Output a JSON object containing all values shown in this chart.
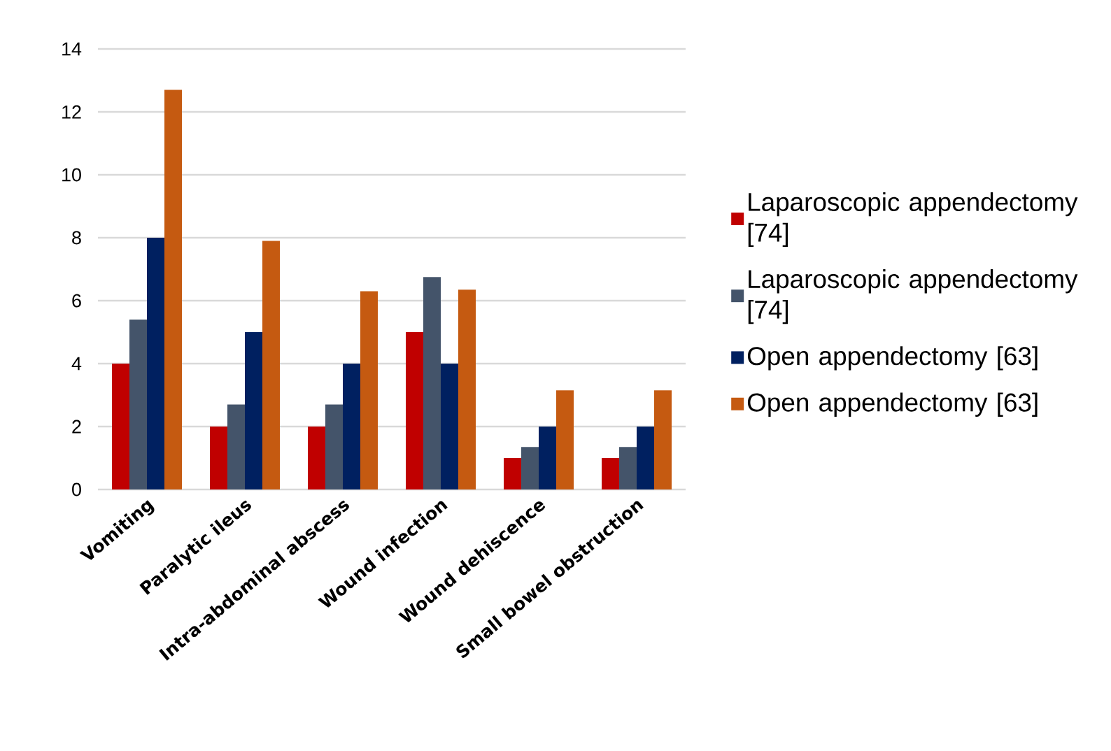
{
  "chart_data": {
    "type": "bar",
    "categories": [
      "Vomiting",
      "Paralytic ileus",
      "Intra-abdominal abscess",
      "Wound infection",
      "Wound dehiscence",
      "Small bowel obstruction"
    ],
    "series": [
      {
        "name": "Laparoscopic appendectomy [74]",
        "color": "#c00000",
        "values": [
          4,
          2,
          2,
          5,
          1,
          1
        ]
      },
      {
        "name": "Laparoscopic appendectomy [74]",
        "color": "#44546a",
        "values": [
          5.4,
          2.7,
          2.7,
          6.75,
          1.35,
          1.35
        ]
      },
      {
        "name": "Open appendectomy [63]",
        "color": "#002060",
        "values": [
          8,
          5,
          4,
          4,
          2,
          2
        ]
      },
      {
        "name": "Open appendectomy [63]",
        "color": "#c55a11",
        "values": [
          12.7,
          7.9,
          6.3,
          6.35,
          3.15,
          3.15
        ]
      }
    ],
    "ylim": [
      0,
      14
    ],
    "yticks": [
      0,
      2,
      4,
      6,
      8,
      10,
      12,
      14
    ],
    "grid": "y",
    "legend": "right"
  }
}
